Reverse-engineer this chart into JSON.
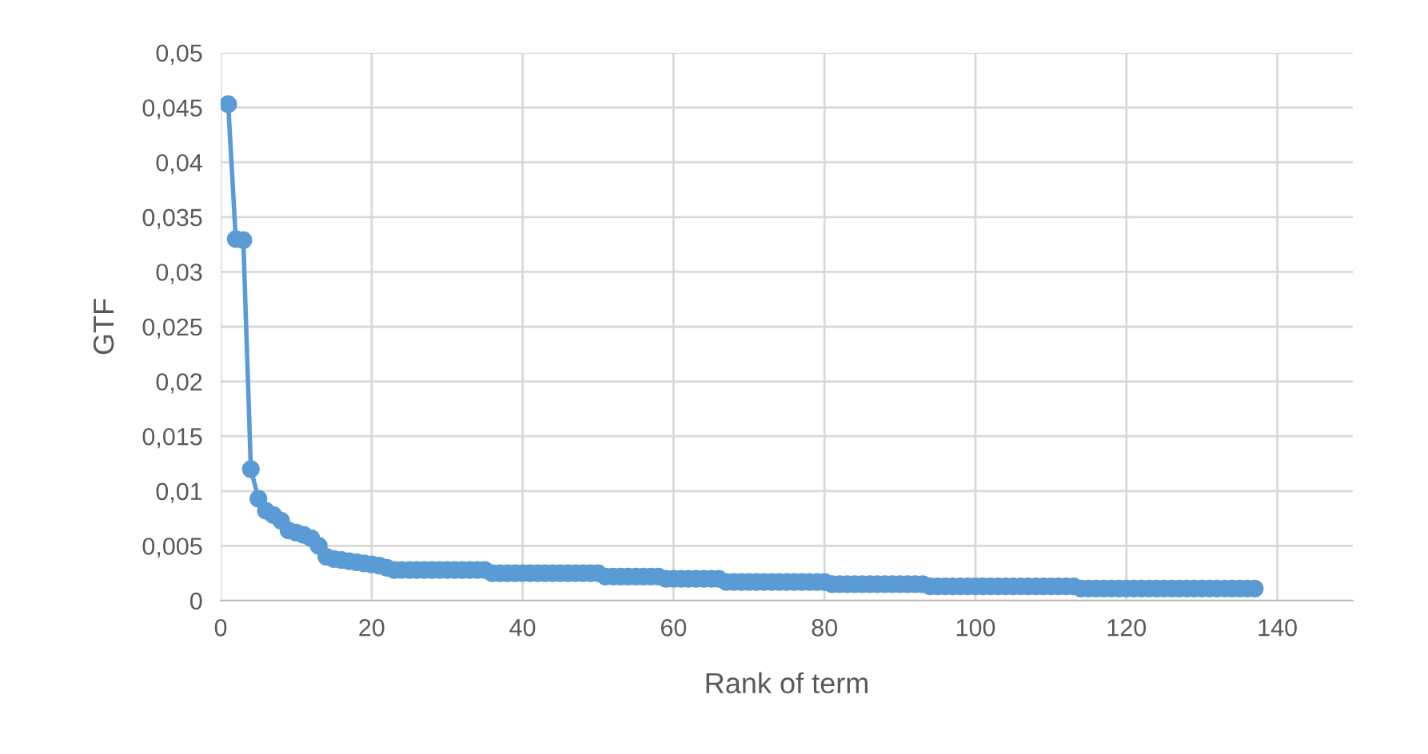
{
  "chart_data": {
    "type": "line",
    "xlabel": "Rank of term",
    "ylabel": "GTF",
    "x": [
      1,
      2,
      3,
      4,
      5,
      6,
      7,
      8,
      9,
      10,
      11,
      12,
      13,
      14,
      15,
      16,
      17,
      18,
      19,
      20,
      21,
      22,
      23,
      24,
      25,
      26,
      27,
      28,
      29,
      30,
      31,
      32,
      33,
      34,
      35,
      36,
      37,
      38,
      39,
      40,
      41,
      42,
      43,
      44,
      45,
      46,
      47,
      48,
      49,
      50,
      51,
      52,
      53,
      54,
      55,
      56,
      57,
      58,
      59,
      60,
      61,
      62,
      63,
      64,
      65,
      66,
      67,
      68,
      69,
      70,
      71,
      72,
      73,
      74,
      75,
      76,
      77,
      78,
      79,
      80,
      81,
      82,
      83,
      84,
      85,
      86,
      87,
      88,
      89,
      90,
      91,
      92,
      93,
      94,
      95,
      96,
      97,
      98,
      99,
      100,
      101,
      102,
      103,
      104,
      105,
      106,
      107,
      108,
      109,
      110,
      111,
      112,
      113,
      114,
      115,
      116,
      117,
      118,
      119,
      120,
      121,
      122,
      123,
      124,
      125,
      126,
      127,
      128,
      129,
      130,
      131,
      132,
      133,
      134,
      135,
      136,
      137
    ],
    "series": [
      {
        "color": "#5b9bd5",
        "values": [
          0.0453,
          0.033,
          0.0329,
          0.012,
          0.0093,
          0.0082,
          0.0078,
          0.0073,
          0.0064,
          0.0062,
          0.006,
          0.0057,
          0.005,
          0.004,
          0.0038,
          0.0037,
          0.0036,
          0.0035,
          0.0034,
          0.0033,
          0.0032,
          0.003,
          0.0028,
          0.0028,
          0.0028,
          0.0028,
          0.0028,
          0.0028,
          0.0028,
          0.0028,
          0.0028,
          0.0028,
          0.0028,
          0.0028,
          0.0028,
          0.0025,
          0.0025,
          0.0025,
          0.0025,
          0.0025,
          0.0025,
          0.0025,
          0.0025,
          0.0025,
          0.0025,
          0.0025,
          0.0025,
          0.0025,
          0.0025,
          0.0025,
          0.0022,
          0.0022,
          0.0022,
          0.0022,
          0.0022,
          0.0022,
          0.0022,
          0.0022,
          0.002,
          0.002,
          0.002,
          0.002,
          0.002,
          0.002,
          0.002,
          0.002,
          0.0017,
          0.0017,
          0.0017,
          0.0017,
          0.0017,
          0.0017,
          0.0017,
          0.0017,
          0.0017,
          0.0017,
          0.0017,
          0.0017,
          0.0017,
          0.0017,
          0.0015,
          0.0015,
          0.0015,
          0.0015,
          0.0015,
          0.0015,
          0.0015,
          0.0015,
          0.0015,
          0.0015,
          0.0015,
          0.0015,
          0.0015,
          0.0013,
          0.0013,
          0.0013,
          0.0013,
          0.0013,
          0.0013,
          0.0013,
          0.0013,
          0.0013,
          0.0013,
          0.0013,
          0.0013,
          0.0013,
          0.0013,
          0.0013,
          0.0013,
          0.0013,
          0.0013,
          0.0013,
          0.0013,
          0.0011,
          0.0011,
          0.0011,
          0.0011,
          0.0011,
          0.0011,
          0.0011,
          0.0011,
          0.0011,
          0.0011,
          0.0011,
          0.0011,
          0.0011,
          0.0011,
          0.0011,
          0.0011,
          0.0011,
          0.0011,
          0.0011,
          0.0011,
          0.0011,
          0.0011,
          0.0011,
          0.0011
        ]
      }
    ],
    "xlim": [
      0,
      150
    ],
    "xticks": [
      0,
      20,
      40,
      60,
      80,
      100,
      120,
      140
    ],
    "ylim": [
      0,
      0.05
    ],
    "yticks": [
      {
        "value": 0,
        "label": "0"
      },
      {
        "value": 0.005,
        "label": "0,005"
      },
      {
        "value": 0.01,
        "label": "0,01"
      },
      {
        "value": 0.015,
        "label": "0,015"
      },
      {
        "value": 0.02,
        "label": "0,02"
      },
      {
        "value": 0.025,
        "label": "0,025"
      },
      {
        "value": 0.03,
        "label": "0,03"
      },
      {
        "value": 0.035,
        "label": "0,035"
      },
      {
        "value": 0.04,
        "label": "0,04"
      },
      {
        "value": 0.045,
        "label": "0,045"
      },
      {
        "value": 0.05,
        "label": "0,05"
      }
    ],
    "grid": true,
    "marker": "circle",
    "line_style": "solid"
  }
}
